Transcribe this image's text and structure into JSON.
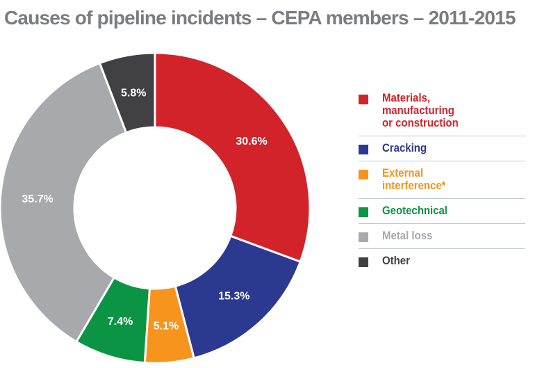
{
  "chart_data": {
    "type": "pie",
    "title": "Causes of pipeline incidents – CEPA members – 2011-2015",
    "categories": [
      "Materials, manufacturing or construction",
      "Cracking",
      "External interference*",
      "Geotechnical",
      "Metal loss",
      "Other"
    ],
    "values": [
      30.6,
      15.3,
      5.1,
      7.4,
      35.7,
      5.8
    ],
    "labels": [
      "30.6%",
      "15.3%",
      "5.1%",
      "7.4%",
      "35.7%",
      "5.8%"
    ],
    "colors": [
      "#d2232a",
      "#2b3990",
      "#f7941d",
      "#0b9444",
      "#a7a9ac",
      "#414042"
    ],
    "legend": [
      {
        "label": "Materials,\nmanufacturing\nor construction",
        "color": "#d2232a"
      },
      {
        "label": "Cracking",
        "color": "#2b3990"
      },
      {
        "label": "External\ninterference*",
        "color": "#f7941d"
      },
      {
        "label": "Geotechnical",
        "color": "#0b9444"
      },
      {
        "label": "Metal loss",
        "color": "#a7a9ac"
      },
      {
        "label": "Other",
        "color": "#414042"
      }
    ],
    "legend_position": "right"
  }
}
